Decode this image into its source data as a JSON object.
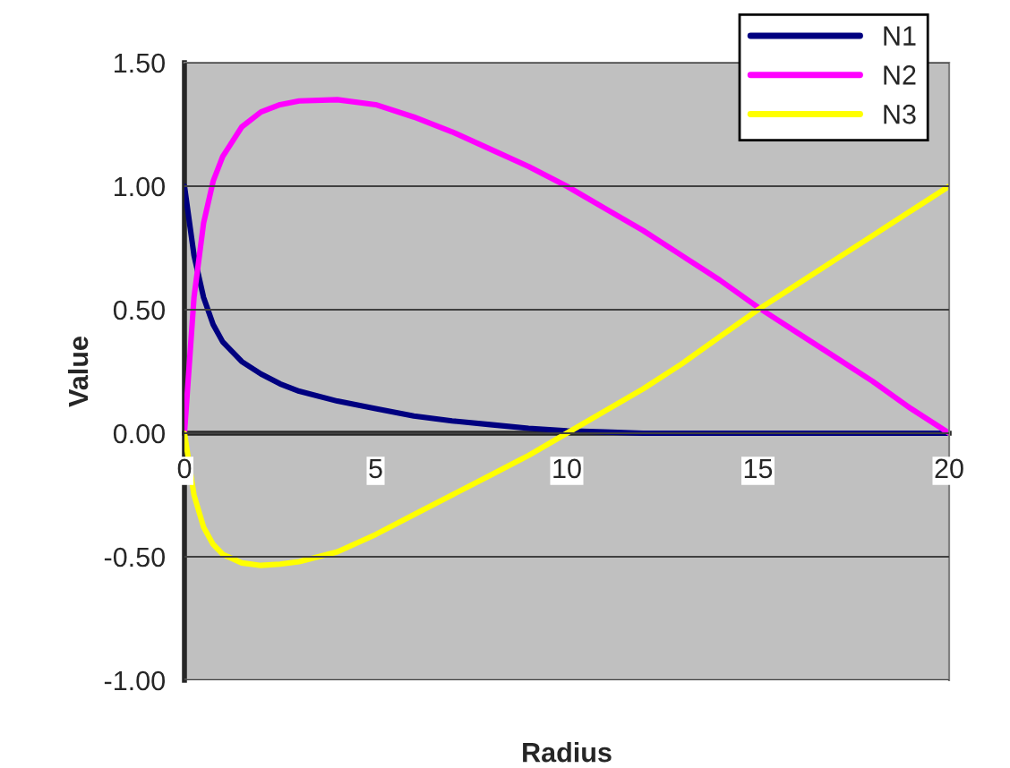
{
  "chart_data": {
    "type": "line",
    "xlabel": "Radius",
    "ylabel": "Value",
    "x": [
      0,
      0.25,
      0.5,
      0.75,
      1,
      1.5,
      2,
      2.5,
      3,
      4,
      5,
      6,
      7,
      8,
      9,
      10,
      11,
      12,
      13,
      14,
      15,
      16,
      17,
      18,
      19,
      20
    ],
    "series": [
      {
        "name": "N1",
        "color": "#000080",
        "values": [
          1.0,
          0.72,
          0.55,
          0.44,
          0.37,
          0.29,
          0.24,
          0.2,
          0.17,
          0.13,
          0.1,
          0.07,
          0.05,
          0.035,
          0.02,
          0.01,
          0.005,
          0,
          0,
          0,
          0,
          0,
          0,
          0,
          0,
          0
        ]
      },
      {
        "name": "N2",
        "color": "#ff00ff",
        "values": [
          0,
          0.55,
          0.85,
          1.02,
          1.12,
          1.24,
          1.3,
          1.33,
          1.345,
          1.35,
          1.33,
          1.28,
          1.22,
          1.15,
          1.08,
          1.0,
          0.91,
          0.82,
          0.72,
          0.62,
          0.51,
          0.41,
          0.31,
          0.21,
          0.1,
          0
        ]
      },
      {
        "name": "N3",
        "color": "#ffff00",
        "values": [
          0,
          -0.25,
          -0.38,
          -0.45,
          -0.49,
          -0.525,
          -0.535,
          -0.53,
          -0.52,
          -0.48,
          -0.41,
          -0.33,
          -0.25,
          -0.17,
          -0.09,
          0.0,
          0.09,
          0.18,
          0.28,
          0.39,
          0.5,
          0.6,
          0.7,
          0.8,
          0.9,
          1.0
        ]
      }
    ],
    "xlim": [
      0,
      20
    ],
    "xticks": [
      0,
      5,
      10,
      15,
      20
    ],
    "ylim": [
      -1.0,
      1.5
    ],
    "yticks": [
      {
        "value": -1.0,
        "label": "-1.00"
      },
      {
        "value": -0.5,
        "label": "-0.50"
      },
      {
        "value": 0,
        "label": "0.00"
      },
      {
        "value": 0.5,
        "label": "0.50"
      },
      {
        "value": 1.0,
        "label": "1.00"
      },
      {
        "value": 1.5,
        "label": "1.50"
      }
    ],
    "grid": "y",
    "legend": "top right",
    "marker": "none",
    "line_style": "solid"
  }
}
